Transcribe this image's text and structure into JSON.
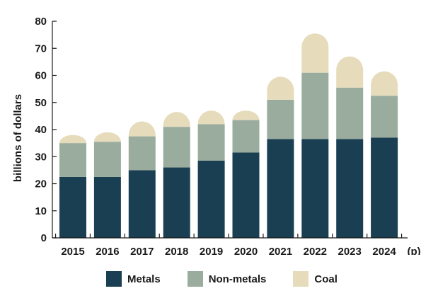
{
  "chart_data": {
    "type": "bar",
    "stacked": true,
    "ylabel": "billions of dollars",
    "xlabel": "",
    "ylim": [
      0,
      80
    ],
    "yticks": [
      0,
      10,
      20,
      30,
      40,
      50,
      60,
      70,
      80
    ],
    "grid": false,
    "categories": [
      "2015",
      "2016",
      "2017",
      "2018",
      "2019",
      "2020",
      "2021",
      "2022",
      "2023",
      "2024"
    ],
    "projection_note": "(p)",
    "series": [
      {
        "name": "Metals",
        "color": "#1b3f52",
        "values": [
          22.5,
          22.5,
          25.0,
          26.0,
          28.5,
          31.5,
          36.5,
          36.5,
          36.5,
          37.0
        ]
      },
      {
        "name": "Non-metals",
        "color": "#9aac9e",
        "values": [
          12.5,
          13.0,
          12.5,
          15.0,
          13.5,
          12.0,
          14.5,
          24.5,
          19.0,
          15.5
        ]
      },
      {
        "name": "Coal",
        "color": "#e6dcbc",
        "values": [
          3.0,
          3.5,
          5.5,
          5.5,
          5.0,
          3.5,
          8.5,
          14.5,
          11.5,
          9.0
        ]
      }
    ],
    "legend_position": "bottom"
  }
}
